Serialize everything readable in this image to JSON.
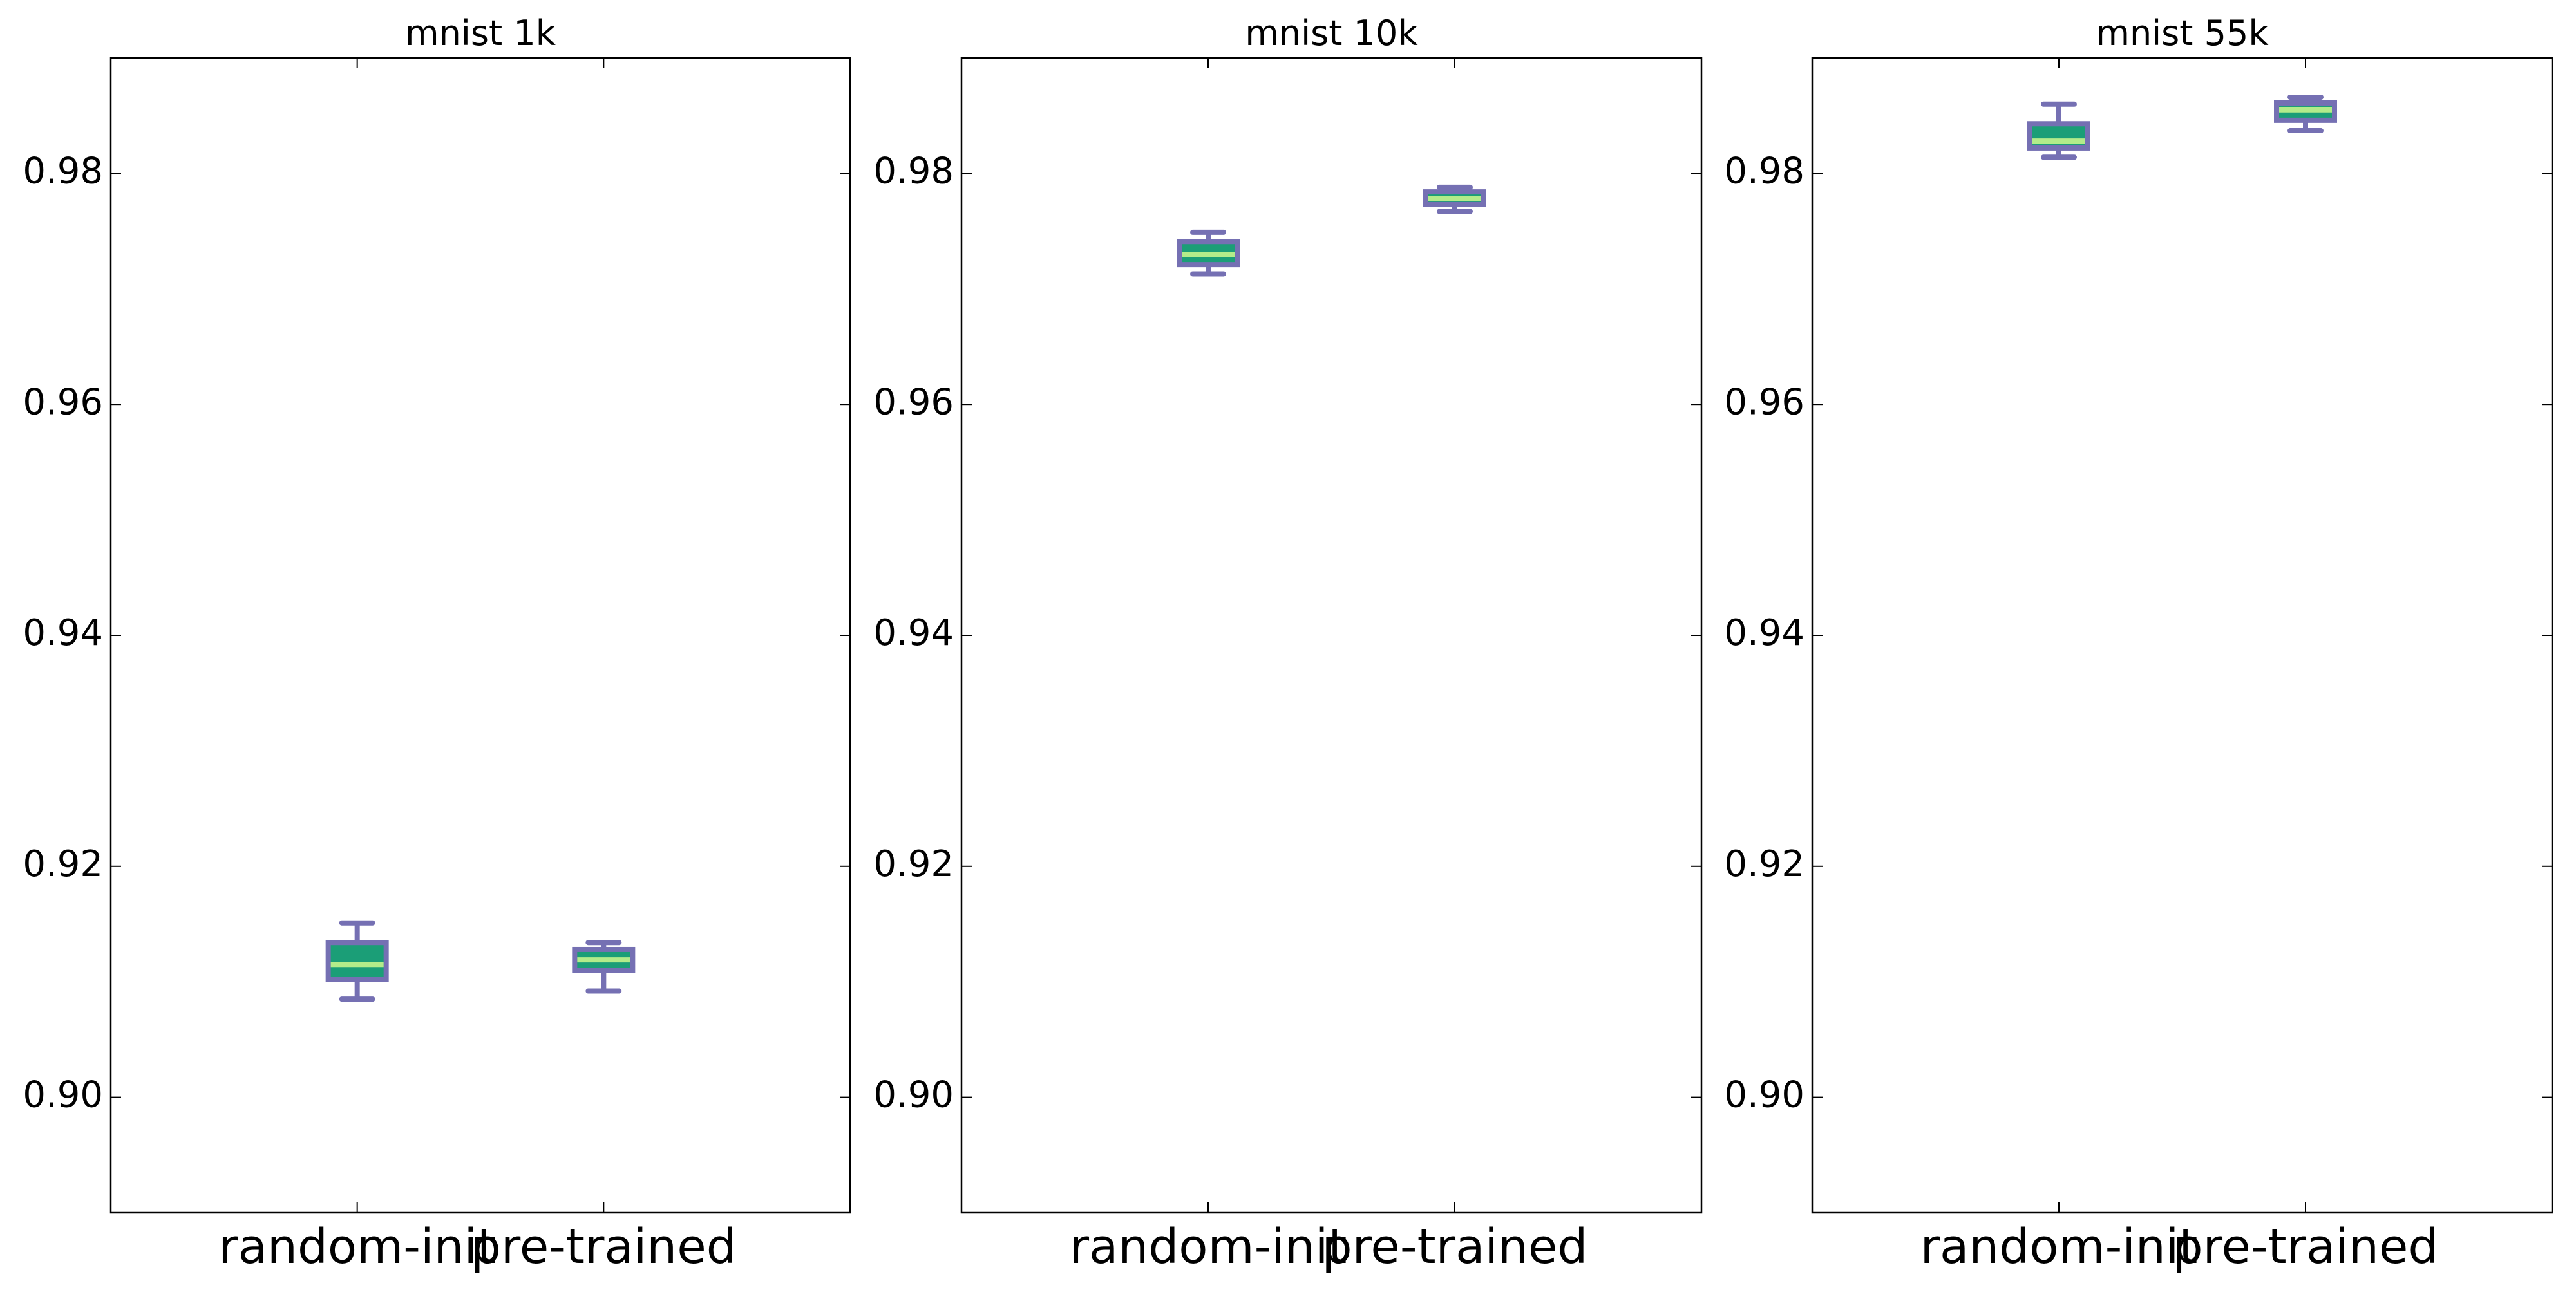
{
  "colors": {
    "box_edge": "#7570b3",
    "box_fill": "#1b9e77",
    "median": "#b3ec8a",
    "axes": "#000000",
    "background": "#ffffff"
  },
  "chart_data": [
    {
      "type": "box",
      "title": "mnist 1k",
      "xlabel": "",
      "ylabel": "",
      "categories": [
        "random-init",
        "pre-trained"
      ],
      "ylim": [
        0.89,
        0.99
      ],
      "yticks": [
        0.9,
        0.92,
        0.94,
        0.96,
        0.98
      ],
      "ytick_labels": [
        "0.90",
        "0.92",
        "0.94",
        "0.96",
        "0.98"
      ],
      "grid": false,
      "boxes": [
        {
          "whislo": 0.9085,
          "q1": 0.9102,
          "med": 0.9115,
          "q3": 0.9134,
          "whishi": 0.9151,
          "fliers": []
        },
        {
          "whislo": 0.9092,
          "q1": 0.911,
          "med": 0.9119,
          "q3": 0.9128,
          "whishi": 0.9134,
          "fliers": []
        }
      ]
    },
    {
      "type": "box",
      "title": "mnist 10k",
      "xlabel": "",
      "ylabel": "",
      "categories": [
        "random-init",
        "pre-trained"
      ],
      "ylim": [
        0.89,
        0.99
      ],
      "yticks": [
        0.9,
        0.92,
        0.94,
        0.96,
        0.98
      ],
      "ytick_labels": [
        "0.90",
        "0.92",
        "0.94",
        "0.96",
        "0.98"
      ],
      "grid": false,
      "boxes": [
        {
          "whislo": 0.9713,
          "q1": 0.9721,
          "med": 0.973,
          "q3": 0.9741,
          "whishi": 0.9749,
          "fliers": []
        },
        {
          "whislo": 0.9767,
          "q1": 0.9773,
          "med": 0.9778,
          "q3": 0.9784,
          "whishi": 0.9788,
          "fliers": []
        }
      ]
    },
    {
      "type": "box",
      "title": "mnist 55k",
      "xlabel": "",
      "ylabel": "",
      "categories": [
        "random-init",
        "pre-trained"
      ],
      "ylim": [
        0.89,
        0.99
      ],
      "yticks": [
        0.9,
        0.92,
        0.94,
        0.96,
        0.98
      ],
      "ytick_labels": [
        "0.90",
        "0.92",
        "0.94",
        "0.96",
        "0.98"
      ],
      "grid": false,
      "boxes": [
        {
          "whislo": 0.9814,
          "q1": 0.9822,
          "med": 0.9828,
          "q3": 0.9843,
          "whishi": 0.986,
          "fliers": []
        },
        {
          "whislo": 0.9837,
          "q1": 0.9846,
          "med": 0.9855,
          "q3": 0.9861,
          "whishi": 0.9866,
          "fliers": []
        }
      ]
    }
  ]
}
